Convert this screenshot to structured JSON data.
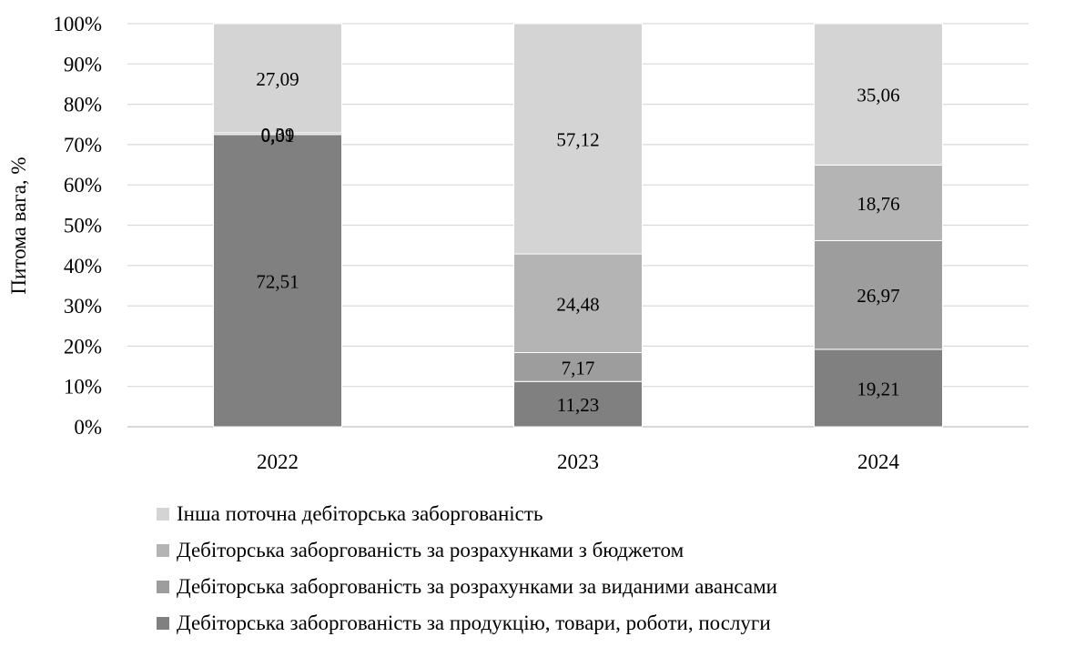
{
  "chart_data": {
    "type": "bar",
    "stacked": true,
    "categories": [
      "2022",
      "2023",
      "2024"
    ],
    "series": [
      {
        "name": "Дебіторська заборгованість за продукцію, товари, роботи, послуги",
        "values": [
          72.51,
          11.23,
          19.21
        ],
        "color": "#808080",
        "labels": [
          "72,51",
          "11,23",
          "19,21"
        ]
      },
      {
        "name": "Дебіторська заборгованість за розрахунками за виданими авансами",
        "values": [
          0.01,
          7.17,
          26.97
        ],
        "color": "#9d9d9d",
        "labels": [
          "0,01",
          "7,17",
          "26,97"
        ]
      },
      {
        "name": "Дебіторська заборгованість за розрахунками з бюджетом",
        "values": [
          0.39,
          24.48,
          18.76
        ],
        "color": "#b4b4b4",
        "labels": [
          "0,39",
          "24,48",
          "18,76"
        ]
      },
      {
        "name": "Інша поточна дебіторська заборгованість",
        "values": [
          27.09,
          57.12,
          35.06
        ],
        "color": "#d4d4d4",
        "labels": [
          "27,09",
          "57,12",
          "35,06"
        ]
      }
    ],
    "ylabel": "Питома вага, %",
    "ylim": [
      0,
      100
    ],
    "yticks": [
      "0%",
      "10%",
      "20%",
      "30%",
      "40%",
      "50%",
      "60%",
      "70%",
      "80%",
      "90%",
      "100%"
    ],
    "grid": true,
    "legend_position": "bottom"
  }
}
